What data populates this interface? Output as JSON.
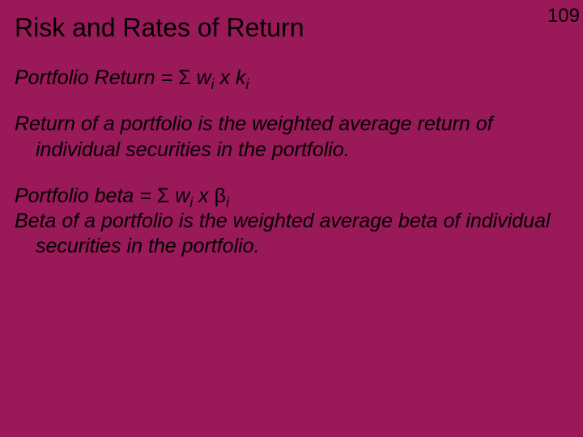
{
  "slide": {
    "background_color": "#9a1959",
    "text_color": "#000000",
    "page_number": "109",
    "title": "Risk and Rates of Return",
    "title_fontsize": 32,
    "body_fontsize": 25,
    "body_font_style": "italic",
    "font_family": "Arial",
    "formula1": {
      "prefix": "Portfolio Return = ",
      "sigma": "Σ",
      "term1": " w",
      "sub1": "i",
      "mid": " x k",
      "sub2": "i"
    },
    "para1": "Return of a portfolio is the weighted average return of individual securities in the portfolio.",
    "formula2": {
      "prefix": "Portfolio beta = ",
      "sigma": "Σ",
      "term1": " w",
      "sub1": "i",
      "mid": " x ",
      "beta": "β",
      "sub2": "i"
    },
    "para2": "Beta of a portfolio is the weighted average beta of individual securities in the portfolio."
  }
}
